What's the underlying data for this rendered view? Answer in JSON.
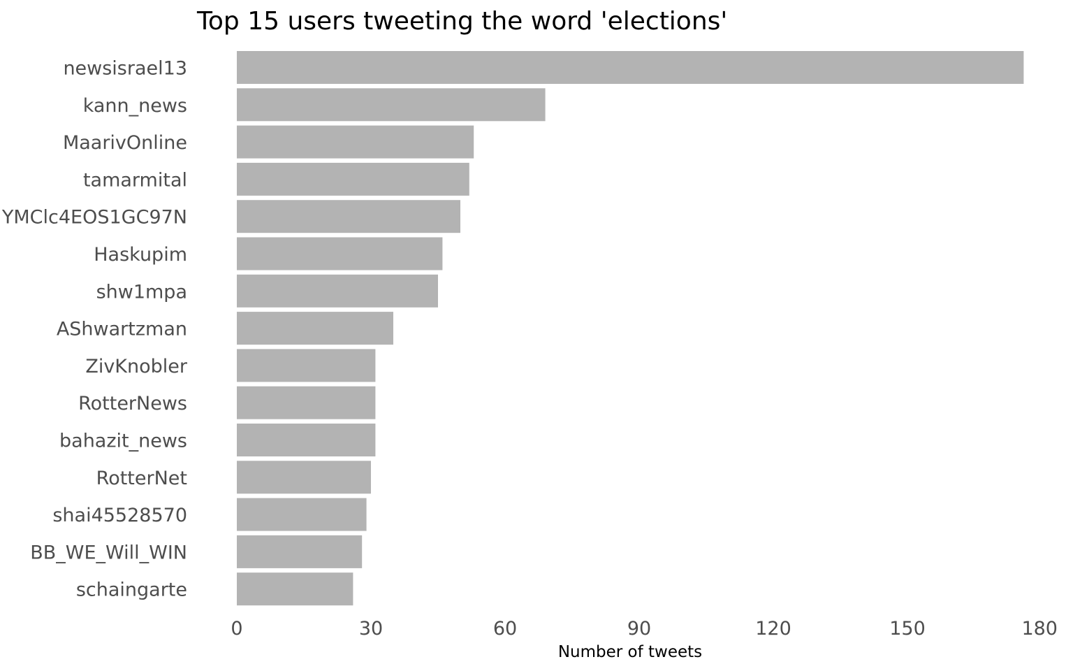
{
  "chart_data": {
    "type": "bar",
    "orientation": "horizontal",
    "title": "Top 15 users tweeting the word 'elections'",
    "xlabel": "Number of tweets",
    "ylabel": "",
    "categories": [
      "newsisrael13",
      "kann_news",
      "MaarivOnline",
      "tamarmital",
      "YMClc4EOS1GC97N",
      "Haskupim",
      "shw1mpa",
      "AShwartzman",
      "ZivKnobler",
      "RotterNews",
      "bahazit_news",
      "RotterNet",
      "shai45528570",
      "BB_WE_Will_WIN",
      "schaingarte"
    ],
    "values": [
      176,
      69,
      53,
      52,
      50,
      46,
      45,
      35,
      31,
      31,
      31,
      30,
      29,
      28,
      26
    ],
    "xlim": [
      0,
      180
    ],
    "xticks": [
      0,
      30,
      60,
      90,
      120,
      150,
      180
    ],
    "grid": false,
    "bar_color": "#b3b3b3"
  }
}
